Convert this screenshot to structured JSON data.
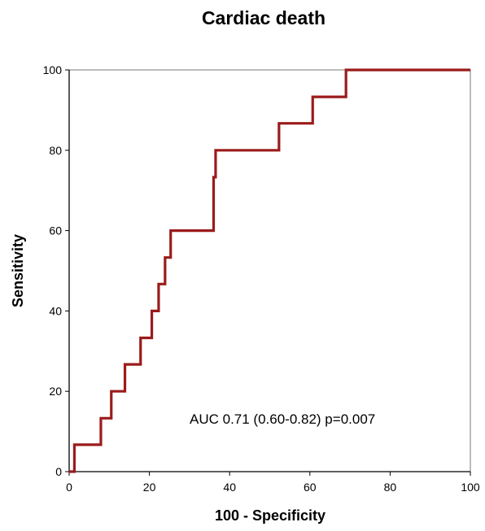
{
  "chart_data": {
    "type": "line",
    "title": "Cardiac death",
    "xlabel": "100 - Specificity",
    "ylabel": "Sensitivity",
    "xlim": [
      0,
      100
    ],
    "ylim": [
      0,
      100
    ],
    "x_ticks": [
      "0",
      "20",
      "40",
      "60",
      "80",
      "100"
    ],
    "y_ticks": [
      "0",
      "20",
      "40",
      "60",
      "80",
      "100"
    ],
    "annotation": "AUC 0.71 (0.60-0.82) p=0.007",
    "grid": false,
    "line_color": "#9b1b1b",
    "series": [
      {
        "x": [
          0,
          1.3,
          1.3,
          7.9,
          7.9,
          10.5,
          10.5,
          13.9,
          13.9,
          17.8,
          17.8,
          20.6,
          20.6,
          22.3,
          22.3,
          23.9,
          23.9,
          24.6,
          24.6,
          25.3,
          25.3,
          36.0,
          36.0,
          36.5,
          36.5,
          52.3,
          52.3,
          60.7,
          60.7,
          69.0,
          69.0,
          100
        ],
        "y": [
          0,
          0,
          6.7,
          6.7,
          13.3,
          13.3,
          20.0,
          20.0,
          26.7,
          26.7,
          33.3,
          33.3,
          40.0,
          40.0,
          46.7,
          46.7,
          53.3,
          53.3,
          53.3,
          53.3,
          60.0,
          60.0,
          73.3,
          73.3,
          80.0,
          80.0,
          86.7,
          86.7,
          93.3,
          93.3,
          100,
          100
        ]
      }
    ]
  }
}
